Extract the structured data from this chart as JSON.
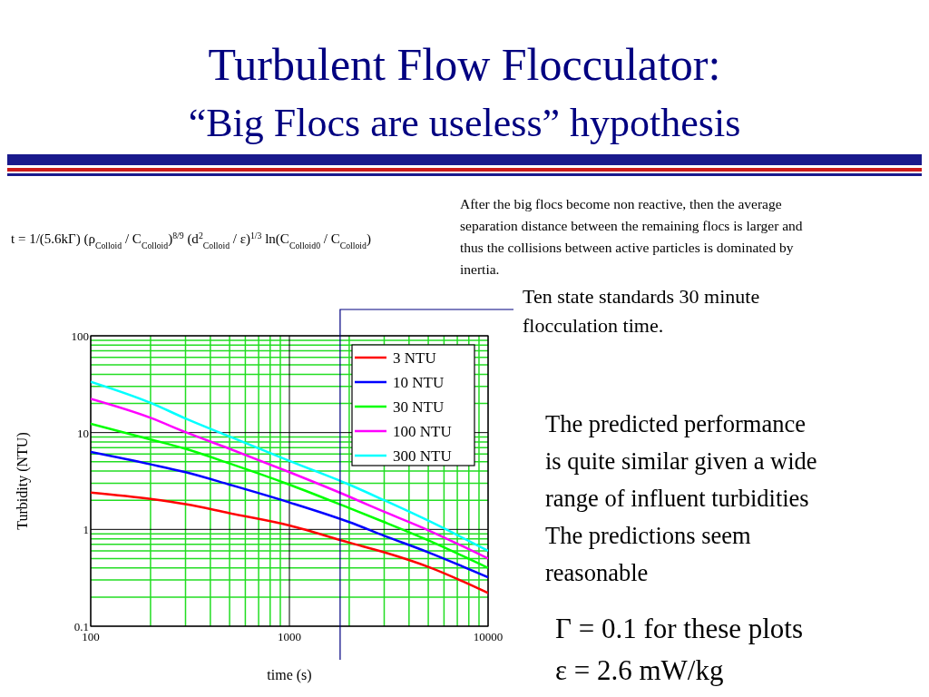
{
  "chart_data": {
    "type": "line",
    "title": "Turbulent Flow Flocculator:",
    "subtitle": "“Big Flocs are useless” hypothesis",
    "xlabel": "time (s)",
    "ylabel": "Turbidity (NTU)",
    "x": [
      100,
      200,
      300,
      500,
      1000,
      2000,
      3000,
      5000,
      10000
    ],
    "series": [
      {
        "name": "3 NTU",
        "color": "#ff0000",
        "values": [
          2.4,
          2.06,
          1.82,
          1.47,
          1.1,
          0.73,
          0.58,
          0.41,
          0.22
        ]
      },
      {
        "name": "10 NTU",
        "color": "#0000ff",
        "values": [
          6.3,
          4.7,
          3.9,
          2.9,
          1.9,
          1.19,
          0.86,
          0.58,
          0.32
        ]
      },
      {
        "name": "30 NTU",
        "color": "#00ff00",
        "values": [
          12.3,
          8.5,
          6.8,
          4.8,
          2.9,
          1.66,
          1.19,
          0.77,
          0.4
        ]
      },
      {
        "name": "100 NTU",
        "color": "#ff00ff",
        "values": [
          22.3,
          14.2,
          10.1,
          6.8,
          3.9,
          2.18,
          1.52,
          0.98,
          0.5
        ]
      },
      {
        "name": "300 NTU",
        "color": "#00ffff",
        "values": [
          33.5,
          20.3,
          14,
          9.1,
          5.1,
          2.9,
          2.0,
          1.23,
          0.6
        ]
      }
    ],
    "xlim": [
      100,
      10000
    ],
    "xticks": [
      100,
      {
        "value": 200,
        "label": null
      },
      {
        "value": 300,
        "label": null
      },
      {
        "value": 400,
        "label": null
      },
      {
        "value": 500,
        "label": null
      },
      {
        "value": 600,
        "label": null
      },
      {
        "value": 700,
        "label": null
      },
      {
        "value": 800,
        "label": null
      },
      {
        "value": 900,
        "label": null
      },
      1000,
      {
        "value": 2000,
        "label": null
      },
      {
        "value": 3000,
        "label": null
      },
      {
        "value": 4000,
        "label": null
      },
      {
        "value": 5000,
        "label": null
      },
      {
        "value": 6000,
        "label": null
      },
      {
        "value": 7000,
        "label": null
      },
      {
        "value": 8000,
        "label": null
      },
      {
        "value": 9000,
        "label": null
      },
      10000
    ],
    "ylim": [
      0.1,
      100
    ],
    "yticks": [
      0.1,
      {
        "value": 0.2,
        "label": null
      },
      {
        "value": 0.3,
        "label": null
      },
      {
        "value": 0.4,
        "label": null
      },
      {
        "value": 0.5,
        "label": null
      },
      {
        "value": 0.6,
        "label": null
      },
      {
        "value": 0.7,
        "label": null
      },
      {
        "value": 0.8,
        "label": null
      },
      {
        "value": 0.9,
        "label": null
      },
      1,
      {
        "value": 2,
        "label": null
      },
      {
        "value": 3,
        "label": null
      },
      {
        "value": 4,
        "label": null
      },
      {
        "value": 5,
        "label": null
      },
      {
        "value": 6,
        "label": null
      },
      {
        "value": 7,
        "label": null
      },
      {
        "value": 8,
        "label": null
      },
      {
        "value": 9,
        "label": null
      },
      10,
      {
        "value": 20,
        "label": null
      },
      {
        "value": 30,
        "label": null
      },
      {
        "value": 40,
        "label": null
      },
      {
        "value": 50,
        "label": null
      },
      {
        "value": 60,
        "label": null
      },
      {
        "value": 70,
        "label": null
      },
      {
        "value": 80,
        "label": null
      },
      {
        "value": 90,
        "label": null
      },
      100
    ],
    "log": "xy",
    "grid": true,
    "legend": "top right",
    "marker": "none",
    "line_style": "solid",
    "ref_lines": [
      {
        "axis": "x",
        "value": 1800,
        "label": "Ten state standards 30 minute\nflocculation time.",
        "color": "#000080"
      }
    ],
    "annotations": [
      "t = 1/(5.6kΓ) (ρ$_{Colloid}$ / C$_{Colloid}$)$^{8/9}$ (d$^{2}$$_{Colloid}$ / ε)$^{1/3}$ ln(C$_{Colloid0}$ / C$_{Colloid}$)",
      "After the big flocs become non reactive, then the average\nseparation distance between the remaining flocs is larger and\nthus the collisions between active particles is dominated by\ninertia.",
      "The predicted performance\nis quite similar given a wide\nrange of influent turbidities\nThe predictions seem\nreasonable",
      "Γ   = 0.1 for these plots",
      "ε = 2.6 mW/kg"
    ]
  }
}
